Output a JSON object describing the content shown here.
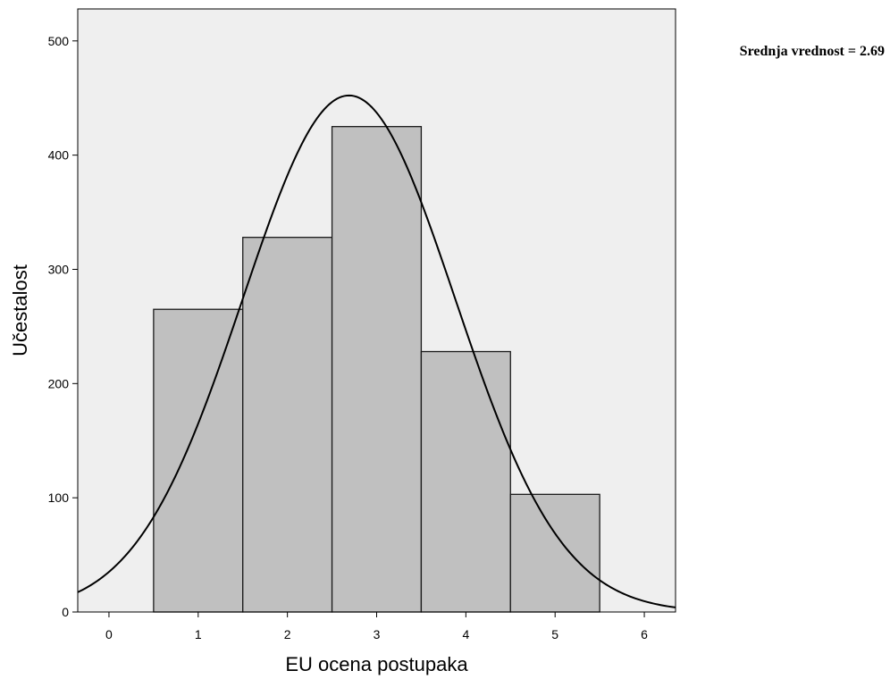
{
  "chart_data": {
    "type": "bar",
    "subtype": "histogram",
    "categories": [
      "1",
      "2",
      "3",
      "4",
      "5"
    ],
    "values": [
      265,
      328,
      425,
      228,
      103
    ],
    "bin_edges": [
      0.5,
      1.5,
      2.5,
      3.5,
      4.5,
      5.5
    ],
    "xlabel": "EU ocena postupaka",
    "ylabel": "Učestalost",
    "xlim": [
      -0.35,
      6.35
    ],
    "ylim": [
      0,
      528
    ],
    "xticks": [
      0,
      1,
      2,
      3,
      4,
      5,
      6
    ],
    "yticks": [
      0,
      100,
      200,
      300,
      400,
      500
    ],
    "annotation": "Srednja vrednost = 2.69",
    "normal_curve": {
      "mean": 2.69,
      "sd": 1.19,
      "n": 1349
    },
    "grid": false,
    "colors": {
      "plot_background": "#efefef",
      "bar_fill": "#c0c0c0",
      "bar_stroke": "#1a1a1a",
      "curve": "#000000"
    }
  }
}
